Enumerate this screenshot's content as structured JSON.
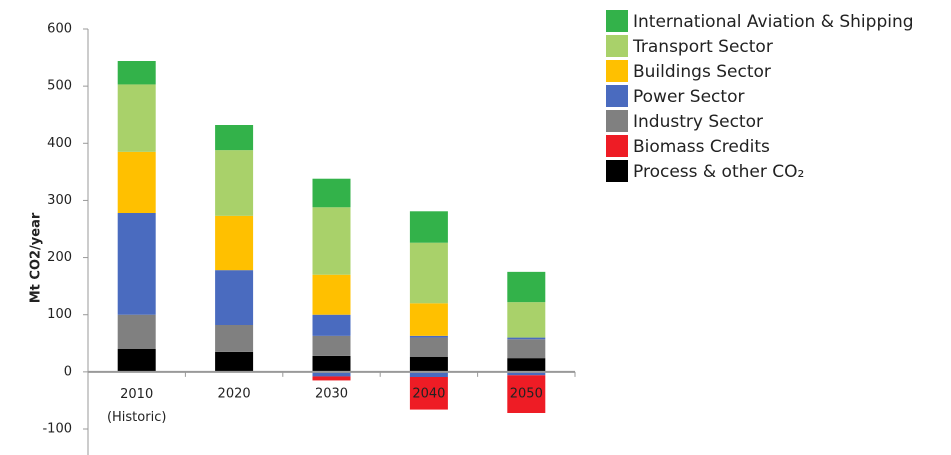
{
  "chart_data": {
    "type": "stacked_bar",
    "y_label": "Mt CO2/year",
    "categories": [
      "2010\n(Historic)",
      "2020",
      "2030",
      "2040",
      "2050"
    ],
    "ylim": [
      -100,
      600
    ],
    "yticks": [
      -100,
      0,
      100,
      200,
      300,
      400,
      500,
      600
    ],
    "legend": "right",
    "grid": false,
    "series": [
      {
        "name": "Process & other CO₂",
        "color": "#000000",
        "values": [
          40,
          35,
          28,
          26,
          24
        ]
      },
      {
        "name": "Industry Sector",
        "color": "#808080",
        "values": [
          60,
          47,
          35,
          34,
          33
        ]
      },
      {
        "name": "Power Sector",
        "color": "#4a6bbf",
        "values": [
          178,
          96,
          37,
          3,
          3
        ]
      },
      {
        "name": "Buildings Sector",
        "color": "#ffc000",
        "values": [
          107,
          95,
          70,
          57,
          null
        ]
      },
      {
        "name": "Transport Sector",
        "color": "#a9d16a",
        "values": [
          118,
          115,
          118,
          106,
          62
        ]
      },
      {
        "name": "International Aviation & Shipping",
        "color": "#33b24a",
        "values": [
          41,
          44,
          50,
          55,
          53
        ]
      },
      {
        "name": "Power Sector",
        "color": "#4a6bbf",
        "values": [
          null,
          null,
          -8,
          -9,
          -6
        ]
      },
      {
        "name": "Biomass Credits",
        "color": "#ee1c25",
        "values": [
          null,
          null,
          -7,
          -57,
          -66
        ]
      }
    ]
  }
}
